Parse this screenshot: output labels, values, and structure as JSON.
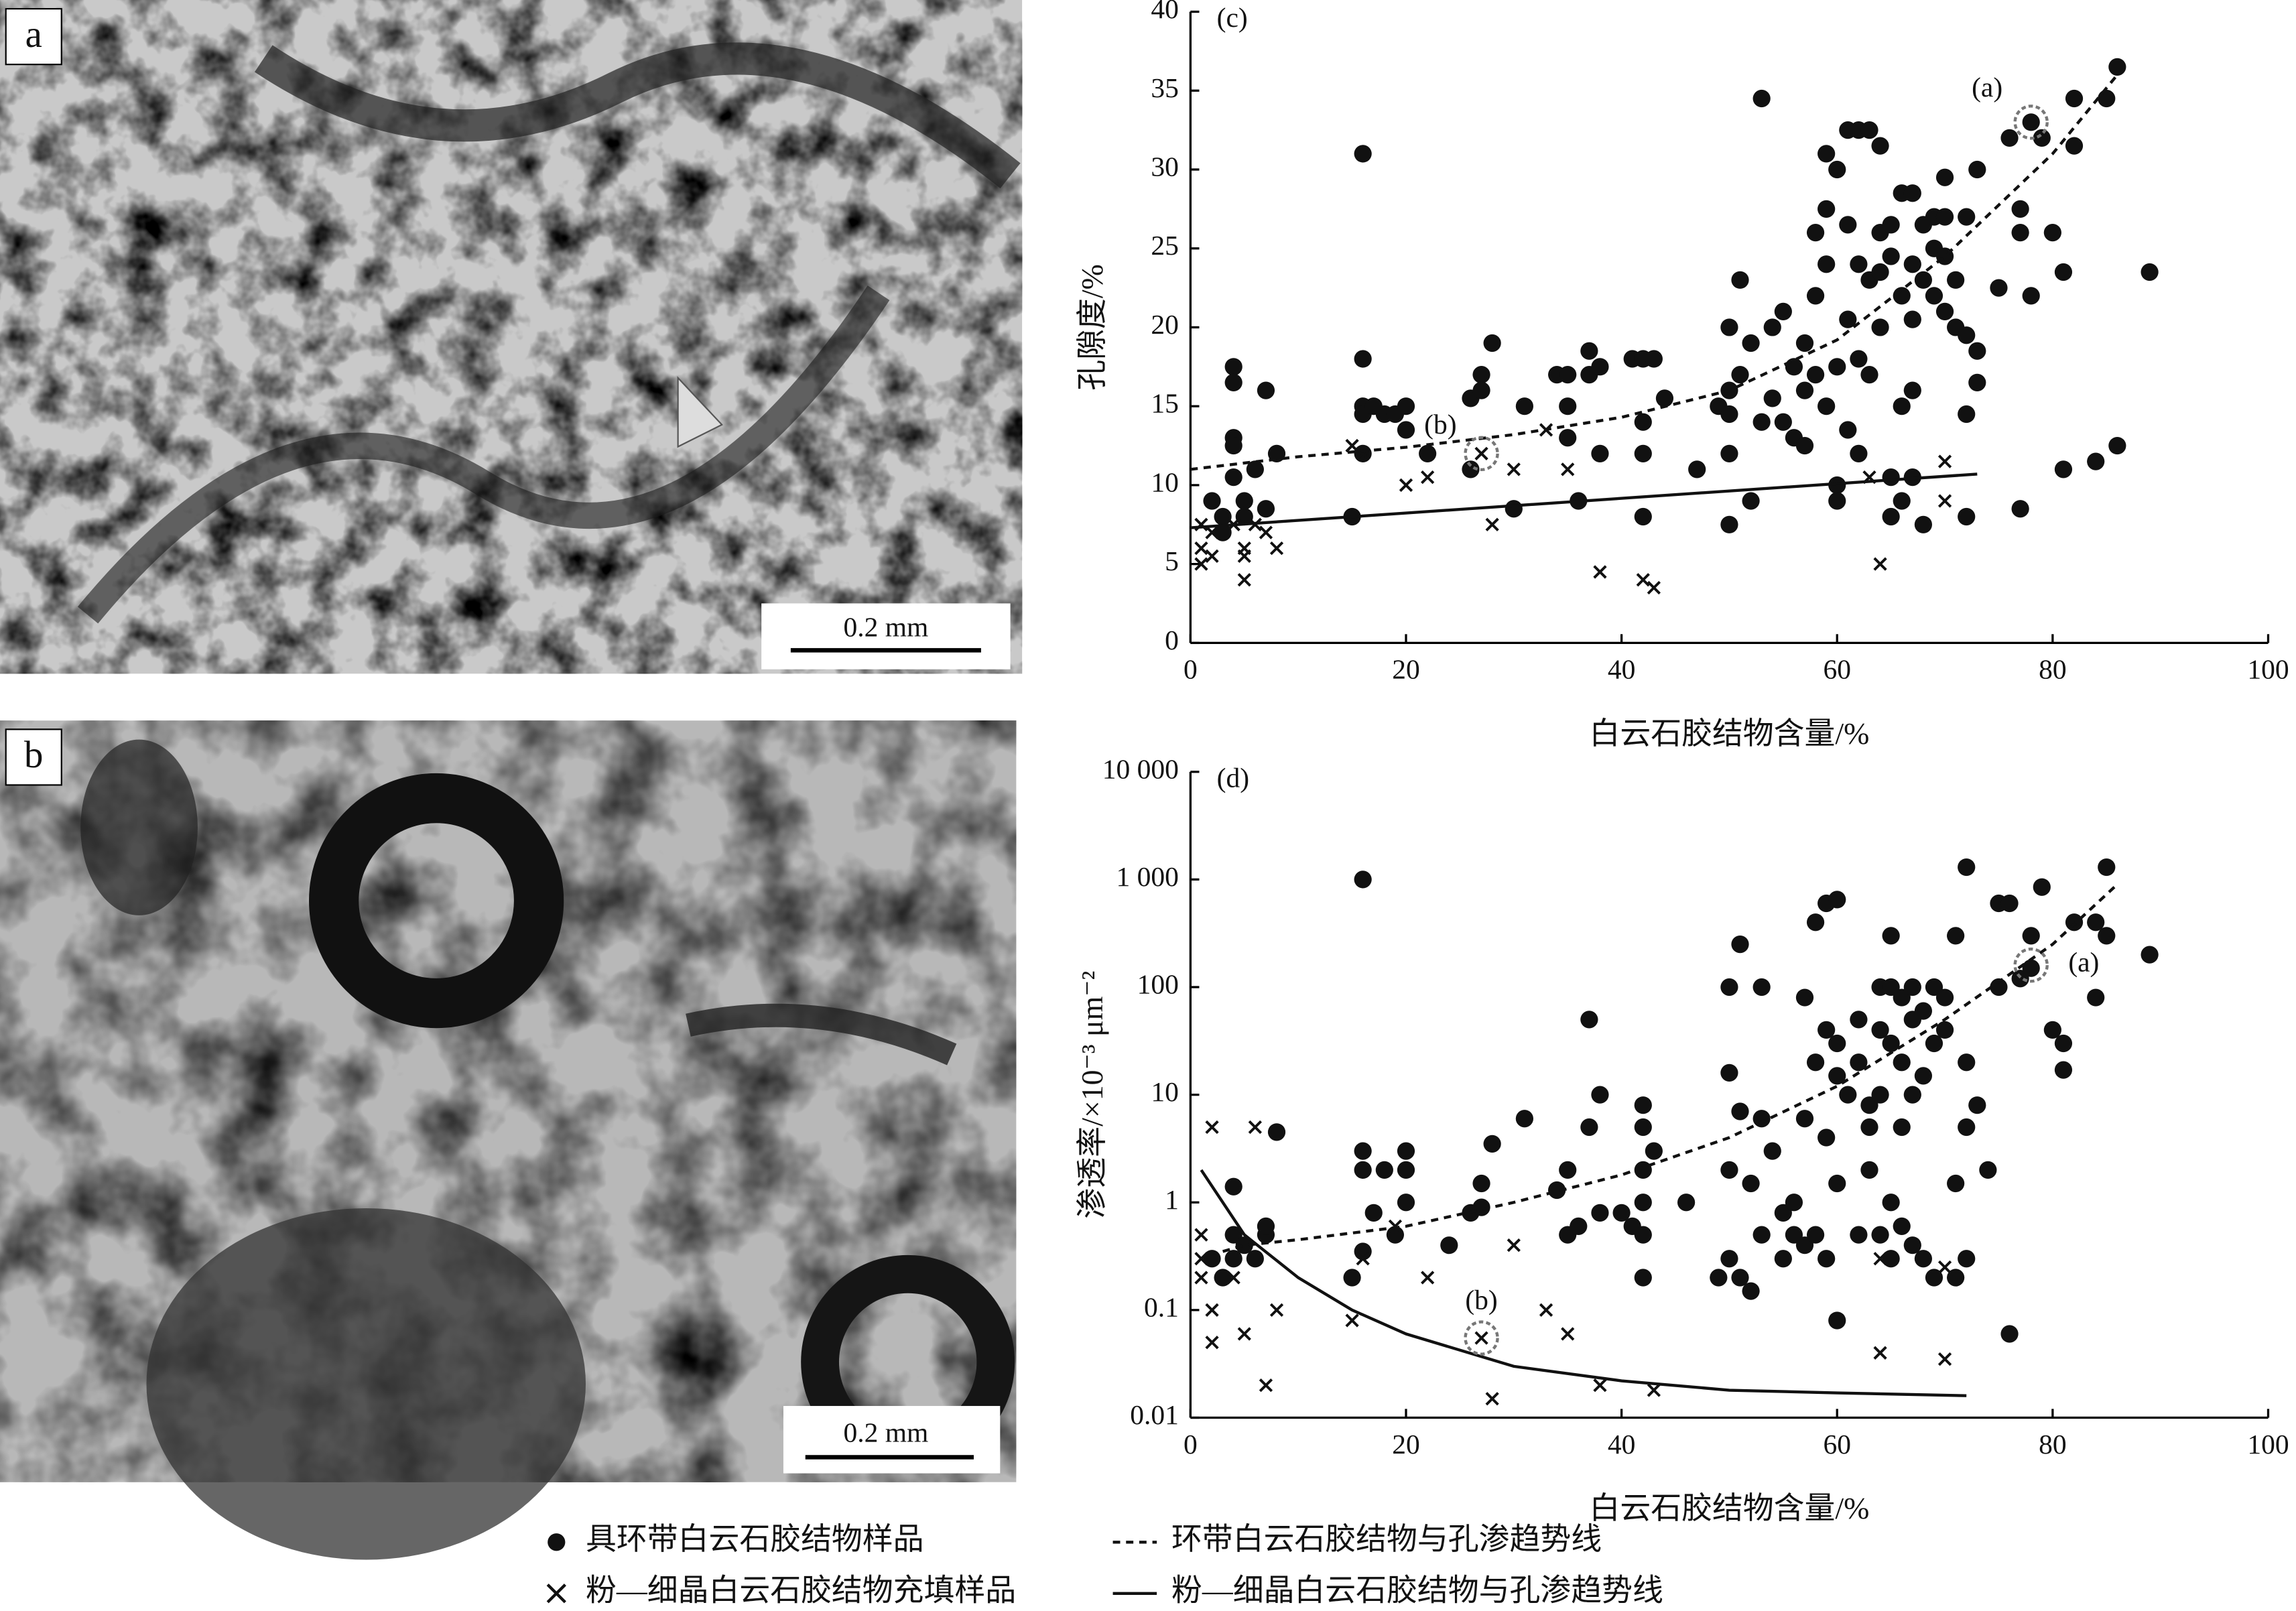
{
  "photos": [
    {
      "label": "a",
      "scale_bar": "0.2 mm"
    },
    {
      "label": "b",
      "scale_bar": "0.2 mm"
    }
  ],
  "chart_data": [
    {
      "type": "scatter",
      "label": "(c)",
      "x_label": "白云石胶结物含量/%",
      "y_label": "孔隙度/%",
      "xlim": [
        0,
        100
      ],
      "xticks": [
        0,
        20,
        40,
        60,
        80,
        100
      ],
      "ylim": [
        0,
        40
      ],
      "yticks": [
        0,
        5,
        10,
        15,
        20,
        25,
        30,
        35,
        40
      ],
      "log_y": false,
      "annotations": [
        {
          "text": "(a)",
          "x": 78,
          "y": 33
        },
        {
          "text": "(b)",
          "x": 27,
          "y": 12
        }
      ],
      "series": [
        {
          "name": "具环带白云石胶结物样品",
          "color": "#111111",
          "marker": "circle",
          "x": [
            2,
            3,
            3,
            4,
            4,
            4,
            4,
            4,
            5,
            5,
            6,
            7,
            7,
            8,
            15,
            16,
            16,
            16,
            16,
            16,
            17,
            18,
            19,
            20,
            20,
            22,
            26,
            26,
            27,
            27,
            28,
            30,
            31,
            34,
            35,
            35,
            35,
            36,
            37,
            37,
            38,
            38,
            41,
            42,
            42,
            42,
            42,
            43,
            44,
            47,
            49,
            50,
            50,
            50,
            50,
            50,
            51,
            51,
            52,
            52,
            53,
            53,
            54,
            54,
            55,
            55,
            56,
            56,
            57,
            57,
            57,
            58,
            58,
            58,
            59,
            59,
            59,
            59,
            60,
            60,
            60,
            60,
            61,
            61,
            61,
            61,
            62,
            62,
            62,
            62,
            63,
            63,
            63,
            64,
            64,
            64,
            64,
            65,
            65,
            65,
            65,
            66,
            66,
            66,
            66,
            67,
            67,
            67,
            67,
            67,
            68,
            68,
            68,
            69,
            69,
            69,
            70,
            70,
            70,
            70,
            71,
            71,
            72,
            72,
            72,
            72,
            73,
            73,
            73,
            75,
            76,
            77,
            77,
            77,
            78,
            78,
            79,
            80,
            81,
            82,
            82,
            84,
            85,
            86,
            86,
            89,
            81
          ],
          "values": [
            9,
            7,
            8,
            17.5,
            16.5,
            13,
            12.5,
            10.5,
            8,
            9,
            11,
            16,
            8.5,
            12,
            8,
            31,
            18,
            15,
            14.5,
            12,
            15,
            14.5,
            14.5,
            15,
            13.5,
            12,
            11,
            15.5,
            17,
            16,
            19,
            8.5,
            15,
            17,
            17,
            15,
            13,
            9,
            18.5,
            17,
            12,
            17.5,
            18,
            18,
            14,
            12,
            8,
            18,
            15.5,
            11,
            15,
            14.5,
            16,
            20,
            12,
            7.5,
            23,
            17,
            19,
            9,
            34.5,
            14,
            15.5,
            20,
            21,
            14,
            17.5,
            13,
            19,
            16,
            12.5,
            26,
            17,
            22,
            31,
            27.5,
            24,
            15,
            30,
            17.5,
            10,
            9,
            32.5,
            26.5,
            20.5,
            13.5,
            32.5,
            24,
            18,
            12,
            32.5,
            23,
            17,
            31.5,
            26,
            23.5,
            20,
            26.5,
            24.5,
            10.5,
            8,
            28.5,
            22,
            15,
            9,
            28.5,
            24,
            20.5,
            16,
            10.5,
            26.5,
            23,
            7.5,
            27,
            25,
            22,
            27,
            24.5,
            29.5,
            21,
            23,
            20,
            27,
            19.5,
            14.5,
            8,
            30,
            18.5,
            16.5,
            22.5,
            32,
            27.5,
            26,
            8.5,
            22,
            33,
            32,
            26,
            23.5,
            34.5,
            31.5,
            11.5,
            34.5,
            36.5,
            12.5,
            23.5,
            11
          ]
        },
        {
          "name": "粉—细晶白云石胶结物充填样品",
          "color": "#111111",
          "marker": "x",
          "x": [
            1,
            1,
            1,
            2,
            2,
            4,
            5,
            5,
            5,
            6,
            7,
            8,
            15,
            16,
            20,
            22,
            27,
            28,
            30,
            33,
            35,
            35,
            38,
            42,
            43,
            63,
            64,
            70,
            70
          ],
          "values": [
            7.5,
            5,
            6,
            5.5,
            7,
            7.5,
            6,
            5.5,
            4,
            7.5,
            7,
            6,
            12.5,
            12,
            10,
            10.5,
            12,
            7.5,
            11,
            13.5,
            11,
            13,
            4.5,
            4,
            3.5,
            10.5,
            5,
            9,
            11.5
          ]
        },
        {
          "name": "环带白云石胶结物与孔渗趋势线",
          "color": "#111111",
          "line": "dashed",
          "x": [
            0,
            10,
            20,
            30,
            40,
            50,
            60,
            70,
            80,
            86
          ],
          "values": [
            11,
            11.8,
            12.4,
            13.2,
            14.3,
            16,
            19.2,
            24.5,
            31,
            36
          ]
        },
        {
          "name": "粉—细晶白云石胶结物与孔渗趋势线",
          "color": "#111111",
          "line": "solid",
          "x": [
            0,
            73
          ],
          "values": [
            7.3,
            10.7
          ]
        }
      ]
    },
    {
      "type": "scatter",
      "label": "(d)",
      "x_label": "白云石胶结物含量/%",
      "y_label": "渗透率/×10⁻³ μm⁻²",
      "xlim": [
        0,
        100
      ],
      "xticks": [
        0,
        20,
        40,
        60,
        80,
        100
      ],
      "ylim": [
        0.01,
        10000
      ],
      "log_y": true,
      "yticks": [
        0.01,
        0.1,
        1,
        10,
        100,
        {
          "value": 1000,
          "label": "1 000"
        },
        {
          "value": 10000,
          "label": "10 000"
        }
      ],
      "annotations": [
        {
          "text": "(a)",
          "x": 78,
          "y": 160
        },
        {
          "text": "(b)",
          "x": 27,
          "y": 0.055
        }
      ],
      "series": [
        {
          "name": "具环带白云石胶结物样品",
          "color": "#111111",
          "marker": "circle",
          "x": [
            2,
            3,
            4,
            4,
            4,
            5,
            6,
            7,
            7,
            8,
            15,
            16,
            16,
            16,
            16,
            17,
            18,
            19,
            20,
            20,
            20,
            24,
            26,
            27,
            27,
            28,
            31,
            34,
            35,
            35,
            36,
            37,
            37,
            38,
            38,
            40,
            41,
            42,
            42,
            42,
            42,
            42,
            42,
            43,
            46,
            49,
            50,
            50,
            50,
            50,
            51,
            51,
            51,
            52,
            52,
            53,
            53,
            53,
            54,
            55,
            55,
            56,
            56,
            57,
            57,
            57,
            58,
            58,
            58,
            59,
            59,
            59,
            59,
            60,
            60,
            60,
            60,
            60,
            61,
            62,
            62,
            62,
            63,
            63,
            63,
            64,
            64,
            64,
            64,
            65,
            65,
            65,
            65,
            65,
            66,
            66,
            66,
            66,
            67,
            67,
            67,
            67,
            68,
            68,
            68,
            69,
            69,
            69,
            70,
            70,
            71,
            71,
            71,
            72,
            72,
            72,
            72,
            73,
            74,
            75,
            75,
            76,
            76,
            77,
            78,
            78,
            79,
            80,
            81,
            81,
            82,
            84,
            84,
            85,
            85,
            89
          ],
          "values": [
            0.3,
            0.2,
            1.4,
            0.5,
            0.3,
            0.4,
            0.3,
            0.5,
            0.6,
            4.5,
            0.2,
            1000,
            3,
            2,
            0.35,
            0.8,
            2,
            0.5,
            3,
            2,
            1,
            0.4,
            0.8,
            1.5,
            0.9,
            3.5,
            6,
            1.3,
            2,
            0.5,
            0.6,
            50,
            5,
            10,
            0.8,
            0.8,
            0.6,
            8,
            5,
            2,
            1,
            0.5,
            0.2,
            3,
            1,
            0.2,
            100,
            16,
            2,
            0.3,
            250,
            7,
            0.2,
            1.5,
            0.15,
            100,
            6,
            0.5,
            3,
            0.8,
            0.3,
            1,
            0.5,
            80,
            6,
            0.4,
            400,
            20,
            0.5,
            600,
            40,
            4,
            0.3,
            650,
            30,
            15,
            1.5,
            0.08,
            10,
            50,
            20,
            0.5,
            8,
            5,
            2,
            100,
            40,
            10,
            0.5,
            300,
            100,
            30,
            1,
            0.3,
            80,
            20,
            5,
            0.6,
            100,
            50,
            10,
            0.4,
            60,
            15,
            0.3,
            100,
            30,
            0.2,
            80,
            40,
            300,
            1.5,
            0.2,
            1300,
            20,
            5,
            0.3,
            8,
            2,
            600,
            100,
            600,
            0.06,
            120,
            300,
            150,
            850,
            40,
            30,
            17,
            400,
            80,
            400,
            1300,
            300,
            200
          ]
        },
        {
          "name": "粉—细晶白云石胶结物充填样品",
          "color": "#111111",
          "marker": "x",
          "x": [
            1,
            1,
            1,
            2,
            2,
            2,
            4,
            5,
            6,
            7,
            8,
            15,
            16,
            19,
            22,
            27,
            28,
            30,
            33,
            35,
            38,
            43,
            64,
            64,
            70,
            70
          ],
          "values": [
            0.5,
            0.3,
            0.2,
            5,
            0.1,
            0.05,
            0.2,
            0.06,
            5,
            0.02,
            0.1,
            0.08,
            0.3,
            0.6,
            0.2,
            0.055,
            0.015,
            0.4,
            0.1,
            0.06,
            0.02,
            0.018,
            0.3,
            0.04,
            0.25,
            0.035
          ]
        },
        {
          "name": "环带白云石胶结物与孔渗趋势线",
          "color": "#111111",
          "line": "dashed",
          "x": [
            3,
            5,
            10,
            20,
            30,
            40,
            50,
            60,
            70,
            80,
            86
          ],
          "values": [
            0.35,
            0.4,
            0.45,
            0.6,
            1,
            1.8,
            4,
            12,
            50,
            250,
            900
          ]
        },
        {
          "name": "粉—细晶白云石胶结物与孔渗趋势线",
          "color": "#111111",
          "line": "solid",
          "x": [
            1,
            5,
            10,
            15,
            20,
            30,
            40,
            50,
            60,
            72
          ],
          "values": [
            2,
            0.5,
            0.2,
            0.1,
            0.06,
            0.03,
            0.022,
            0.018,
            0.017,
            0.016
          ]
        }
      ]
    }
  ]
}
